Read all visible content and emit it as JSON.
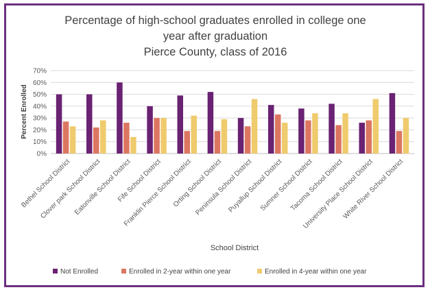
{
  "chart_data": {
    "type": "bar",
    "title": [
      "Percentage of high-school graduates enrolled in college one",
      "year after graduation",
      "Pierce County, class of 2016"
    ],
    "xlabel": "School District",
    "ylabel": "Percent Enrolled",
    "ylim": [
      0,
      70
    ],
    "yticks": [
      "0%",
      "10%",
      "20%",
      "30%",
      "40%",
      "50%",
      "60%",
      "70%"
    ],
    "grid": true,
    "legend_position": "bottom",
    "categories": [
      "Bethel School District",
      "Clover park School District",
      "Eatonville School District",
      "Fife School District",
      "Franklin Pierce School District",
      "Orting School District",
      "Peninsula School District",
      "Puyallup School District",
      "Sumner School District",
      "Tacoma School District",
      "University Place School District",
      "White River School District"
    ],
    "series": [
      {
        "name": "Not Enrolled",
        "color": "#6a2272",
        "values": [
          50,
          50,
          60,
          40,
          49,
          52,
          30,
          41,
          38,
          42,
          26,
          51
        ]
      },
      {
        "name": "Enrolled in  2-year within one year",
        "color": "#dc7661",
        "values": [
          27,
          22,
          26,
          30,
          19,
          19,
          23,
          33,
          28,
          24,
          28,
          19
        ]
      },
      {
        "name": "Enrolled in 4-year within one year",
        "color": "#efcb6d",
        "values": [
          23,
          28,
          14,
          30,
          32,
          29,
          46,
          26,
          34,
          34,
          46,
          30
        ]
      }
    ]
  }
}
